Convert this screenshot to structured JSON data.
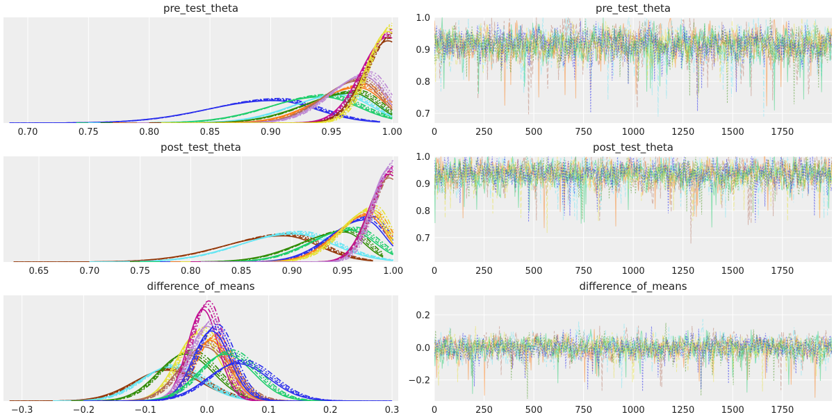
{
  "figure_title": "",
  "colors": [
    "#2a2eec",
    "#fa7c17",
    "#328c06",
    "#c10c90",
    "#933708",
    "#65e5f3",
    "#e6e135",
    "#1ccd6a",
    "#bd8ad5",
    "#b16b57"
  ],
  "chart_data": [
    {
      "id": "kde_pre",
      "type": "line",
      "kind": "density",
      "title": "pre_test_theta",
      "xlabel": "",
      "ylabel": "",
      "xlim": [
        0.68,
        1.005
      ],
      "xticks": [
        0.7,
        0.75,
        0.8,
        0.85,
        0.9,
        0.95,
        1.0
      ],
      "xtick_labels": [
        "0.70",
        "0.75",
        "0.80",
        "0.85",
        "0.90",
        "0.95",
        "1.00"
      ],
      "ymax": 1.08,
      "yticks_shown": false,
      "grid": true,
      "series": [
        {
          "color_index": 0,
          "shape": "bump",
          "mode": 0.905,
          "sd_left": 0.055,
          "sd_right": 0.035,
          "peak": 0.24,
          "x_min": 0.685,
          "x_max": 0.99
        },
        {
          "color_index": 7,
          "shape": "bump",
          "mode": 0.945,
          "sd_left": 0.045,
          "sd_right": 0.03,
          "peak": 0.28,
          "x_min": 0.74,
          "x_max": 1.0
        },
        {
          "color_index": 5,
          "shape": "bump",
          "mode": 0.96,
          "sd_left": 0.04,
          "sd_right": 0.025,
          "peak": 0.3,
          "x_min": 0.75,
          "x_max": 1.0
        },
        {
          "color_index": 2,
          "shape": "bump",
          "mode": 0.97,
          "sd_left": 0.04,
          "sd_right": 0.02,
          "peak": 0.32,
          "x_min": 0.76,
          "x_max": 1.0
        },
        {
          "color_index": 1,
          "shape": "bump",
          "mode": 0.975,
          "sd_left": 0.035,
          "sd_right": 0.02,
          "peak": 0.38,
          "x_min": 0.77,
          "x_max": 1.0
        },
        {
          "color_index": 9,
          "shape": "bump",
          "mode": 0.975,
          "sd_left": 0.03,
          "sd_right": 0.018,
          "peak": 0.45,
          "x_min": 0.78,
          "x_max": 1.0
        },
        {
          "color_index": 8,
          "shape": "bump",
          "mode": 0.98,
          "sd_left": 0.03,
          "sd_right": 0.016,
          "peak": 0.5,
          "x_min": 0.79,
          "x_max": 1.0
        },
        {
          "color_index": 3,
          "shape": "rising",
          "mode": 0.999,
          "sd_left": 0.022,
          "sd_right": 0.01,
          "peak": 0.92,
          "x_min": 0.8,
          "x_max": 1.0
        },
        {
          "color_index": 4,
          "shape": "rising",
          "mode": 0.999,
          "sd_left": 0.02,
          "sd_right": 0.01,
          "peak": 0.88,
          "x_min": 0.8,
          "x_max": 1.0
        },
        {
          "color_index": 6,
          "shape": "rising",
          "mode": 0.999,
          "sd_left": 0.018,
          "sd_right": 0.01,
          "peak": 0.98,
          "x_min": 0.81,
          "x_max": 1.0
        }
      ]
    },
    {
      "id": "trace_pre",
      "type": "line",
      "kind": "trace",
      "title": "pre_test_theta",
      "xlabel": "",
      "ylabel": "",
      "xlim": [
        0,
        1999
      ],
      "ylim": [
        0.67,
        1.0
      ],
      "xticks": [
        0,
        250,
        500,
        750,
        1000,
        1250,
        1500,
        1750
      ],
      "xtick_labels": [
        "0",
        "250",
        "500",
        "750",
        "1000",
        "1250",
        "1500",
        "1750"
      ],
      "yticks": [
        0.7,
        0.8,
        0.9,
        1.0
      ],
      "ytick_labels": [
        "0.7",
        "0.8",
        "0.9",
        "1.0"
      ],
      "grid": true,
      "draws": 2000,
      "center": 0.915,
      "spread": 0.045,
      "upper": 1.0,
      "lower": 0.69
    },
    {
      "id": "kde_post",
      "type": "line",
      "kind": "density",
      "title": "post_test_theta",
      "xlabel": "",
      "ylabel": "",
      "xlim": [
        0.615,
        1.005
      ],
      "xticks": [
        0.65,
        0.7,
        0.75,
        0.8,
        0.85,
        0.9,
        0.95,
        1.0
      ],
      "xtick_labels": [
        "0.65",
        "0.70",
        "0.75",
        "0.80",
        "0.85",
        "0.90",
        "0.95",
        "1.00"
      ],
      "ymax": 1.08,
      "yticks_shown": false,
      "grid": true,
      "series": [
        {
          "color_index": 4,
          "shape": "bump",
          "mode": 0.895,
          "sd_left": 0.06,
          "sd_right": 0.035,
          "peak": 0.28,
          "x_min": 0.625,
          "x_max": 0.98
        },
        {
          "color_index": 5,
          "shape": "bump",
          "mode": 0.905,
          "sd_left": 0.055,
          "sd_right": 0.04,
          "peak": 0.3,
          "x_min": 0.7,
          "x_max": 1.0
        },
        {
          "color_index": 2,
          "shape": "bump",
          "mode": 0.955,
          "sd_left": 0.045,
          "sd_right": 0.02,
          "peak": 0.32,
          "x_min": 0.74,
          "x_max": 0.99
        },
        {
          "color_index": 7,
          "shape": "bump",
          "mode": 0.96,
          "sd_left": 0.04,
          "sd_right": 0.025,
          "peak": 0.34,
          "x_min": 0.75,
          "x_max": 1.0
        },
        {
          "color_index": 0,
          "shape": "bump",
          "mode": 0.975,
          "sd_left": 0.035,
          "sd_right": 0.02,
          "peak": 0.45,
          "x_min": 0.77,
          "x_max": 1.0
        },
        {
          "color_index": 1,
          "shape": "bump",
          "mode": 0.978,
          "sd_left": 0.032,
          "sd_right": 0.018,
          "peak": 0.5,
          "x_min": 0.78,
          "x_max": 1.0
        },
        {
          "color_index": 6,
          "shape": "bump",
          "mode": 0.98,
          "sd_left": 0.03,
          "sd_right": 0.016,
          "peak": 0.55,
          "x_min": 0.79,
          "x_max": 1.0
        },
        {
          "color_index": 9,
          "shape": "rising",
          "mode": 0.999,
          "sd_left": 0.02,
          "sd_right": 0.01,
          "peak": 0.9,
          "x_min": 0.8,
          "x_max": 1.0
        },
        {
          "color_index": 3,
          "shape": "rising",
          "mode": 0.999,
          "sd_left": 0.02,
          "sd_right": 0.01,
          "peak": 0.94,
          "x_min": 0.8,
          "x_max": 1.0
        },
        {
          "color_index": 8,
          "shape": "rising",
          "mode": 0.999,
          "sd_left": 0.018,
          "sd_right": 0.01,
          "peak": 1.0,
          "x_min": 0.81,
          "x_max": 1.0
        }
      ]
    },
    {
      "id": "trace_post",
      "type": "line",
      "kind": "trace",
      "title": "post_test_theta",
      "xlabel": "",
      "ylabel": "",
      "xlim": [
        0,
        1999
      ],
      "ylim": [
        0.61,
        1.0
      ],
      "xticks": [
        0,
        250,
        500,
        750,
        1000,
        1250,
        1500,
        1750
      ],
      "xtick_labels": [
        "0",
        "250",
        "500",
        "750",
        "1000",
        "1250",
        "1500",
        "1750"
      ],
      "yticks": [
        0.7,
        0.8,
        0.9,
        1.0
      ],
      "ytick_labels": [
        "0.7",
        "0.8",
        "0.9",
        "1.0"
      ],
      "grid": true,
      "draws": 2000,
      "center": 0.935,
      "spread": 0.045,
      "upper": 1.0,
      "lower": 0.62
    },
    {
      "id": "kde_diff",
      "type": "line",
      "kind": "density",
      "title": "difference_of_means",
      "xlabel": "",
      "ylabel": "",
      "xlim": [
        -0.33,
        0.31
      ],
      "xticks": [
        -0.3,
        -0.2,
        -0.1,
        0.0,
        0.1,
        0.2,
        0.3
      ],
      "xtick_labels": [
        "−0.3",
        "−0.2",
        "−0.1",
        "0.0",
        "0.1",
        "0.2",
        "0.3"
      ],
      "ymax": 1.08,
      "yticks_shown": false,
      "grid": true,
      "series": [
        {
          "color_index": 4,
          "shape": "normal",
          "mode": -0.06,
          "sd_left": 0.055,
          "sd_right": 0.055,
          "peak": 0.33,
          "x_min": -0.32,
          "x_max": 0.2
        },
        {
          "color_index": 5,
          "shape": "normal",
          "mode": -0.055,
          "sd_left": 0.05,
          "sd_right": 0.05,
          "peak": 0.36,
          "x_min": -0.25,
          "x_max": 0.2
        },
        {
          "color_index": 2,
          "shape": "normal",
          "mode": -0.03,
          "sd_left": 0.045,
          "sd_right": 0.045,
          "peak": 0.5,
          "x_min": -0.22,
          "x_max": 0.18
        },
        {
          "color_index": 6,
          "shape": "normal",
          "mode": -0.01,
          "sd_left": 0.035,
          "sd_right": 0.035,
          "peak": 0.72,
          "x_min": -0.2,
          "x_max": 0.2
        },
        {
          "color_index": 9,
          "shape": "normal",
          "mode": 0.0,
          "sd_left": 0.04,
          "sd_right": 0.04,
          "peak": 0.58,
          "x_min": -0.2,
          "x_max": 0.2
        },
        {
          "color_index": 3,
          "shape": "normal",
          "mode": -0.002,
          "sd_left": 0.025,
          "sd_right": 0.025,
          "peak": 0.98,
          "x_min": -0.2,
          "x_max": 0.2
        },
        {
          "color_index": 8,
          "shape": "normal",
          "mode": 0.005,
          "sd_left": 0.03,
          "sd_right": 0.03,
          "peak": 0.8,
          "x_min": -0.2,
          "x_max": 0.2
        },
        {
          "color_index": 1,
          "shape": "normal",
          "mode": 0.01,
          "sd_left": 0.03,
          "sd_right": 0.03,
          "peak": 0.65,
          "x_min": -0.2,
          "x_max": 0.2
        },
        {
          "color_index": 0,
          "shape": "normal",
          "mode": 0.012,
          "sd_left": 0.03,
          "sd_right": 0.03,
          "peak": 0.75,
          "x_min": -0.2,
          "x_max": 0.25
        },
        {
          "color_index": 7,
          "shape": "normal",
          "mode": 0.035,
          "sd_left": 0.045,
          "sd_right": 0.045,
          "peak": 0.5,
          "x_min": -0.15,
          "x_max": 0.25
        },
        {
          "color_index": 0,
          "shape": "normal",
          "mode": 0.055,
          "sd_left": 0.05,
          "sd_right": 0.05,
          "peak": 0.4,
          "x_min": -0.15,
          "x_max": 0.3
        }
      ]
    },
    {
      "id": "trace_diff",
      "type": "line",
      "kind": "trace",
      "title": "difference_of_means",
      "xlabel": "",
      "ylabel": "",
      "xlim": [
        0,
        1999
      ],
      "ylim": [
        -0.33,
        0.32
      ],
      "xticks": [
        0,
        250,
        500,
        750,
        1000,
        1250,
        1500,
        1750
      ],
      "xtick_labels": [
        "0",
        "250",
        "500",
        "750",
        "1000",
        "1250",
        "1500",
        "1750"
      ],
      "yticks": [
        -0.2,
        0.0,
        0.2
      ],
      "ytick_labels": [
        "−0.2",
        "0.0",
        "0.2"
      ],
      "grid": true,
      "draws": 2000,
      "center": 0.0,
      "spread": 0.06,
      "upper": 0.3,
      "lower": -0.32
    }
  ]
}
